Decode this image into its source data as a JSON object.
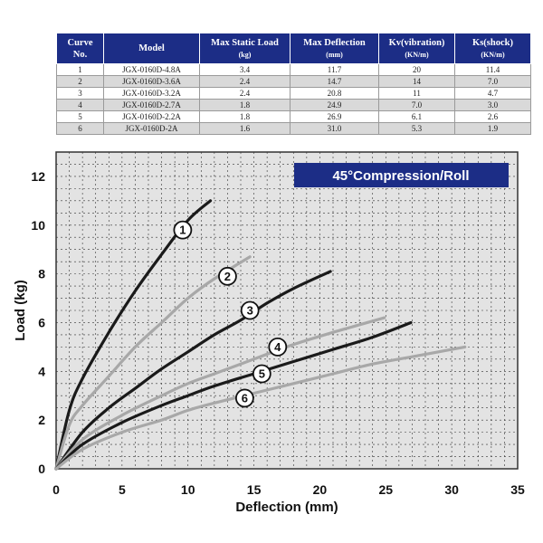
{
  "table": {
    "headers": {
      "curve": {
        "line1": "Curve",
        "line2": "No."
      },
      "model": {
        "line1": "Model",
        "line2": ""
      },
      "load": {
        "line1": "Max Static Load",
        "line2": "(kg)"
      },
      "deflection": {
        "line1": "Max Deflection",
        "line2": "(mm)"
      },
      "kv": {
        "line1": "Kv(vibration)",
        "line2": "(KN/m)"
      },
      "ks": {
        "line1": "Ks(shock)",
        "line2": "(KN/m)"
      }
    },
    "rows": [
      {
        "curve": "1",
        "model": "JGX-0160D-4.8A",
        "load": "3.4",
        "deflection": "11.7",
        "kv": "20",
        "ks": "11.4"
      },
      {
        "curve": "2",
        "model": "JGX-0160D-3.6A",
        "load": "2.4",
        "deflection": "14.7",
        "kv": "14",
        "ks": "7.0"
      },
      {
        "curve": "3",
        "model": "JGX-0160D-3.2A",
        "load": "2.4",
        "deflection": "20.8",
        "kv": "11",
        "ks": "4.7"
      },
      {
        "curve": "4",
        "model": "JGX-0160D-2.7A",
        "load": "1.8",
        "deflection": "24.9",
        "kv": "7.0",
        "ks": "3.0"
      },
      {
        "curve": "5",
        "model": "JGX-0160D-2.2A",
        "load": "1.8",
        "deflection": "26.9",
        "kv": "6.1",
        "ks": "2.6"
      },
      {
        "curve": "6",
        "model": "JGX-0160D-2A",
        "load": "1.6",
        "deflection": "31.0",
        "kv": "5.3",
        "ks": "1.9"
      }
    ]
  },
  "chart_data": {
    "type": "line",
    "title": "45°Compression/Roll",
    "xlabel": "Deflection (mm)",
    "ylabel": "Load (kg)",
    "xlim": [
      0,
      35
    ],
    "ylim": [
      0,
      13
    ],
    "xticks": [
      0,
      5,
      10,
      15,
      20,
      25,
      30,
      35
    ],
    "yticks": [
      0,
      2,
      4,
      6,
      8,
      10,
      12
    ],
    "grid": true,
    "colors": {
      "dark": "#1a1a1a",
      "light": "#a8a8a8",
      "banner": "#1c2d86"
    },
    "series": [
      {
        "name": "1",
        "color": "dark",
        "x": [
          0,
          1,
          2,
          4,
          6,
          8,
          10,
          11.7
        ],
        "y": [
          0,
          2.4,
          3.7,
          5.6,
          7.3,
          8.8,
          10.2,
          11.0
        ],
        "label_at": [
          9.6,
          9.8
        ]
      },
      {
        "name": "2",
        "color": "light",
        "x": [
          0,
          1,
          2,
          4,
          6,
          8,
          10,
          12,
          14.7
        ],
        "y": [
          0,
          1.8,
          2.6,
          3.8,
          5.0,
          6.0,
          7.0,
          7.8,
          8.7
        ],
        "label_at": [
          13.0,
          7.9
        ]
      },
      {
        "name": "3",
        "color": "dark",
        "x": [
          0,
          2,
          4,
          6,
          8,
          10,
          12,
          14,
          16,
          18,
          20.8
        ],
        "y": [
          0,
          1.5,
          2.5,
          3.3,
          4.1,
          4.8,
          5.5,
          6.1,
          6.8,
          7.4,
          8.1
        ],
        "label_at": [
          14.7,
          6.5
        ]
      },
      {
        "name": "4",
        "color": "light",
        "x": [
          0,
          2,
          5,
          8,
          10,
          12,
          15,
          18,
          21,
          24.9
        ],
        "y": [
          0,
          1.2,
          2.2,
          3.0,
          3.5,
          3.9,
          4.5,
          5.1,
          5.6,
          6.2
        ],
        "label_at": [
          16.8,
          5.0
        ]
      },
      {
        "name": "5",
        "color": "dark",
        "x": [
          0,
          2,
          5,
          8,
          10,
          12,
          15,
          18,
          21,
          24,
          26.9
        ],
        "y": [
          0,
          1.0,
          1.9,
          2.6,
          3.0,
          3.4,
          3.9,
          4.4,
          4.9,
          5.4,
          6.0
        ],
        "label_at": [
          15.6,
          3.9
        ]
      },
      {
        "name": "6",
        "color": "light",
        "x": [
          0,
          2,
          5,
          8,
          10,
          12,
          15,
          18,
          21,
          24,
          27,
          31.0
        ],
        "y": [
          0,
          0.8,
          1.5,
          2.0,
          2.4,
          2.7,
          3.1,
          3.5,
          3.9,
          4.3,
          4.6,
          5.0
        ],
        "label_at": [
          14.3,
          2.9
        ]
      }
    ]
  }
}
